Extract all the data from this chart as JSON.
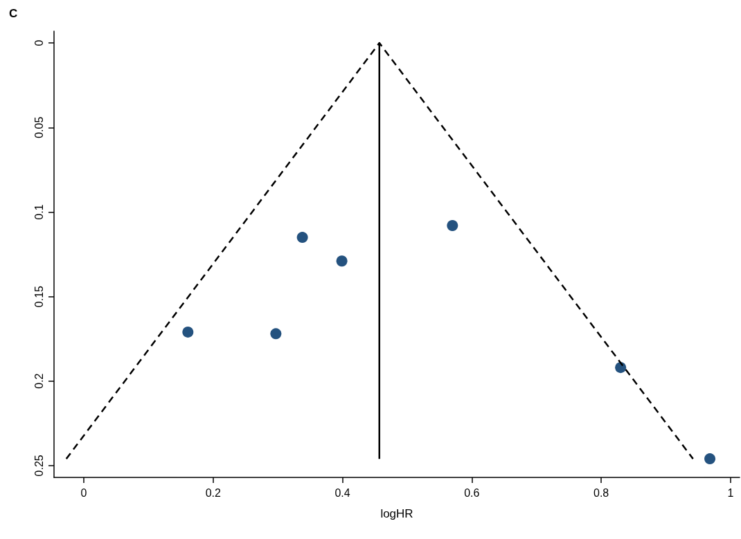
{
  "chart_data": {
    "type": "scatter",
    "title": "C",
    "xlabel": "logHR",
    "xlim": [
      -0.046,
      1.014
    ],
    "xticks": [
      0,
      0.2,
      0.4,
      0.6,
      0.8,
      1
    ],
    "ylim": [
      0.257,
      -0.007
    ],
    "yticks": [
      0,
      0.05,
      0.1,
      0.15,
      0.2,
      0.25
    ],
    "marker": "circle",
    "series": [
      {
        "type": "line",
        "marker": "none",
        "line_style": "dashed",
        "color": "#000000",
        "x": [
          -0.027,
          0.457,
          0.942
        ],
        "values": [
          0.246,
          0,
          0.246
        ]
      },
      {
        "type": "line",
        "marker": "none",
        "line_style": "solid",
        "color": "#000000",
        "x": [
          0.457,
          0.457
        ],
        "values": [
          0,
          0.246
        ]
      },
      {
        "color": "#24527f",
        "x": [
          0.161,
          0.297,
          0.338,
          0.399,
          0.57,
          0.83,
          0.968
        ],
        "values": [
          0.171,
          0.172,
          0.115,
          0.129,
          0.108,
          0.192,
          0.246
        ]
      }
    ]
  }
}
